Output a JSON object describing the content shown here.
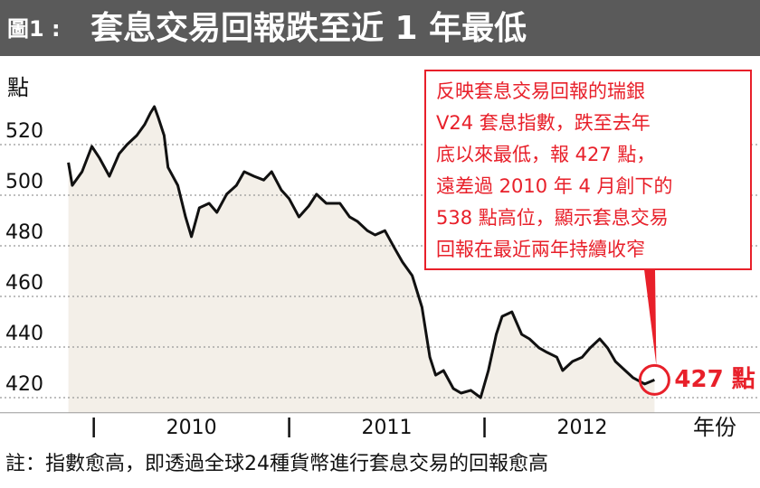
{
  "chart_data": {
    "type": "line",
    "title_prefix": "圖1 :",
    "title": "套息交易回報跌至近 1 年最低",
    "y_label": "點",
    "x_label": "年份",
    "note": "註：指數愈高，即透過全球24種貨幣進行套息交易的回報愈高",
    "annotation": [
      "反映套息交易回報的瑞銀",
      "V24 套息指數，跌至去年",
      "底以來最低，報 427 點，",
      "遠差過 2010 年 4 月創下的",
      "538 點高位，顯示套息交易",
      "回報在最近兩年持續收窄"
    ],
    "end_label": "427 點",
    "color": "#111111",
    "area_color": "#f3efe8",
    "highlight_color": "#e8202a",
    "grid": true,
    "xlim": [
      2009.52,
      2013.41
    ],
    "xticks": [
      2010,
      2011,
      2012
    ],
    "ylim": [
      414,
      547
    ],
    "yticks": [
      420,
      440,
      460,
      480,
      500,
      520
    ],
    "x": [
      2009.87,
      2009.89,
      2009.94,
      2009.99,
      2010.03,
      2010.08,
      2010.13,
      2010.17,
      2010.22,
      2010.26,
      2010.29,
      2010.31,
      2010.33,
      2010.36,
      2010.38,
      2010.43,
      2010.47,
      2010.5,
      2010.54,
      2010.59,
      2010.63,
      2010.68,
      2010.73,
      2010.77,
      2010.82,
      2010.87,
      2010.91,
      2010.96,
      2011.0,
      2011.05,
      2011.1,
      2011.14,
      2011.19,
      2011.26,
      2011.31,
      2011.35,
      2011.4,
      2011.44,
      2011.49,
      2011.54,
      2011.58,
      2011.63,
      2011.68,
      2011.72,
      2011.75,
      2011.79,
      2011.84,
      2011.88,
      2011.93,
      2011.98,
      2012.02,
      2012.06,
      2012.09,
      2012.14,
      2012.19,
      2012.23,
      2012.28,
      2012.32,
      2012.37,
      2012.4,
      2012.45,
      2012.5,
      2012.54,
      2012.59,
      2012.63,
      2012.67,
      2012.72,
      2012.76,
      2012.82,
      2012.87
    ],
    "values": [
      512.9,
      503.9,
      509.3,
      519.3,
      514.6,
      507.5,
      516.4,
      520,
      523.6,
      527.9,
      532.5,
      535,
      530.7,
      523.6,
      511,
      503.9,
      491.4,
      483.6,
      495,
      496.8,
      493.2,
      500.4,
      503.9,
      509.3,
      507.5,
      506,
      509.3,
      502,
      498.6,
      491.4,
      495.7,
      500.4,
      496.8,
      496.8,
      491.4,
      489.6,
      486,
      484.3,
      486,
      479,
      473.6,
      468.2,
      455.7,
      436,
      428.9,
      430.7,
      423.6,
      421.8,
      422.9,
      420,
      430.7,
      445,
      452.1,
      453.9,
      445,
      443.2,
      439.6,
      437.9,
      436,
      430.7,
      434.3,
      436,
      439.6,
      443.2,
      439.6,
      434.3,
      430.7,
      427.9,
      425.4,
      427
    ]
  }
}
